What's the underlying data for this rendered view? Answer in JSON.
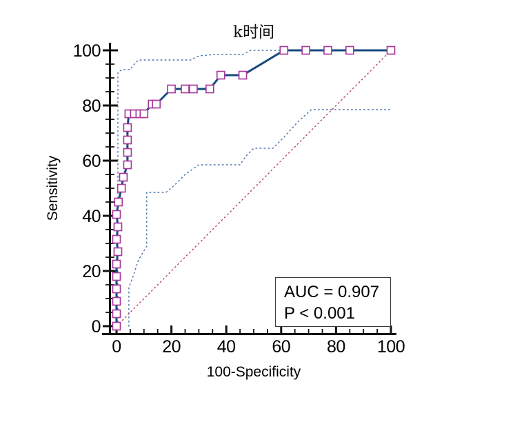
{
  "chart_data": {
    "type": "line",
    "title": "k时间",
    "xlabel": "100-Specificity",
    "ylabel": "Sensitivity",
    "xlim": [
      0,
      100
    ],
    "ylim": [
      0,
      100
    ],
    "xticks": [
      0,
      20,
      40,
      60,
      80,
      100
    ],
    "yticks": [
      0,
      20,
      40,
      60,
      80,
      100
    ],
    "minor_tick_step": 5,
    "grid": "off",
    "annotation": {
      "auc": "AUC = 0.907",
      "p": "P < 0.001"
    },
    "series": [
      {
        "name": "confidence-band-upper",
        "style": "dotted",
        "color": "#4671a8",
        "points": [
          [
            0.5,
            0
          ],
          [
            0.5,
            92
          ],
          [
            2,
            93
          ],
          [
            5,
            93
          ],
          [
            6,
            94.5
          ],
          [
            8,
            96.5
          ],
          [
            27,
            96.5
          ],
          [
            30,
            98
          ],
          [
            36,
            98.5
          ],
          [
            46,
            98.5
          ],
          [
            49,
            100
          ],
          [
            100,
            100
          ]
        ]
      },
      {
        "name": "confidence-band-lower",
        "style": "dotted",
        "color": "#4671a8",
        "points": [
          [
            4.5,
            0
          ],
          [
            4.5,
            14
          ],
          [
            6,
            18
          ],
          [
            8,
            24
          ],
          [
            11,
            29
          ],
          [
            11,
            48.5
          ],
          [
            18,
            48.5
          ],
          [
            21,
            51
          ],
          [
            25,
            55
          ],
          [
            30,
            58.5
          ],
          [
            45,
            58.5
          ],
          [
            47,
            61.5
          ],
          [
            50,
            64.5
          ],
          [
            57,
            64.5
          ],
          [
            61,
            68.5
          ],
          [
            66,
            74
          ],
          [
            71,
            78.5
          ],
          [
            100,
            78.5
          ]
        ]
      },
      {
        "name": "reference-diagonal",
        "style": "dotted",
        "color": "#b8405e",
        "points": [
          [
            0,
            0
          ],
          [
            100,
            100
          ]
        ]
      },
      {
        "name": "roc-curve",
        "style": "solid",
        "color": "#15497d",
        "marker": "square",
        "marker_color": "#a93a9e",
        "points": [
          [
            0,
            0
          ],
          [
            0,
            4.5
          ],
          [
            0,
            9
          ],
          [
            0,
            13.5
          ],
          [
            0,
            18
          ],
          [
            0,
            22.5
          ],
          [
            0.5,
            27
          ],
          [
            0,
            31.5
          ],
          [
            0.5,
            36
          ],
          [
            0,
            40.5
          ],
          [
            0.7,
            45
          ],
          [
            1.8,
            50
          ],
          [
            2.5,
            54
          ],
          [
            4,
            58.5
          ],
          [
            4,
            63
          ],
          [
            4,
            67.5
          ],
          [
            4,
            72
          ],
          [
            4.5,
            77
          ],
          [
            6.5,
            77
          ],
          [
            8.5,
            77
          ],
          [
            10,
            77
          ],
          [
            13,
            80.5
          ],
          [
            14.5,
            80.5
          ],
          [
            20,
            86
          ],
          [
            25,
            86
          ],
          [
            28,
            86
          ],
          [
            34,
            86
          ],
          [
            38,
            91
          ],
          [
            46,
            91
          ],
          [
            61,
            100
          ],
          [
            69,
            100
          ],
          [
            77,
            100
          ],
          [
            85,
            100
          ],
          [
            100,
            100
          ]
        ]
      }
    ]
  }
}
